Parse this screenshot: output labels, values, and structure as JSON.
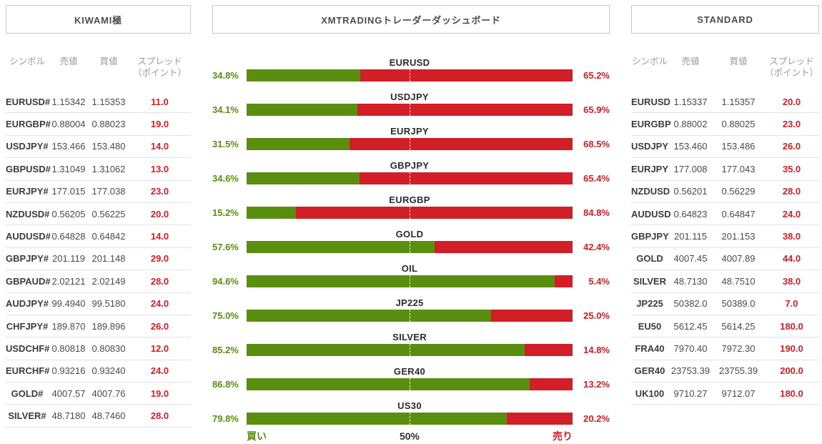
{
  "colors": {
    "buy_green": "#5a8e0e",
    "sell_red": "#d21e26",
    "header_gray": "#9b9b9b",
    "title_gray": "#4d4d4d"
  },
  "kiwami": {
    "title": "KIWAMI極",
    "columns": [
      "シンボル",
      "売値",
      "買値",
      "スプレッド（ポイント）"
    ],
    "rows": [
      {
        "symbol": "EURUSD#",
        "bid": "1.15342",
        "ask": "1.15353",
        "spread": "11.0"
      },
      {
        "symbol": "EURGBP#",
        "bid": "0.88004",
        "ask": "0.88023",
        "spread": "19.0"
      },
      {
        "symbol": "USDJPY#",
        "bid": "153.466",
        "ask": "153.480",
        "spread": "14.0"
      },
      {
        "symbol": "GBPUSD#",
        "bid": "1.31049",
        "ask": "1.31062",
        "spread": "13.0"
      },
      {
        "symbol": "EURJPY#",
        "bid": "177.015",
        "ask": "177.038",
        "spread": "23.0"
      },
      {
        "symbol": "NZDUSD#",
        "bid": "0.56205",
        "ask": "0.56225",
        "spread": "20.0"
      },
      {
        "symbol": "AUDUSD#",
        "bid": "0.64828",
        "ask": "0.64842",
        "spread": "14.0"
      },
      {
        "symbol": "GBPJPY#",
        "bid": "201.119",
        "ask": "201.148",
        "spread": "29.0"
      },
      {
        "symbol": "GBPAUD#",
        "bid": "2.02121",
        "ask": "2.02149",
        "spread": "28.0"
      },
      {
        "symbol": "AUDJPY#",
        "bid": "99.4940",
        "ask": "99.5180",
        "spread": "24.0"
      },
      {
        "symbol": "CHFJPY#",
        "bid": "189.870",
        "ask": "189.896",
        "spread": "26.0"
      },
      {
        "symbol": "USDCHF#",
        "bid": "0.80818",
        "ask": "0.80830",
        "spread": "12.0"
      },
      {
        "symbol": "EURCHF#",
        "bid": "0.93216",
        "ask": "0.93240",
        "spread": "24.0"
      },
      {
        "symbol": "GOLD#",
        "bid": "4007.57",
        "ask": "4007.76",
        "spread": "19.0"
      },
      {
        "symbol": "SILVER#",
        "bid": "48.7180",
        "ask": "48.7460",
        "spread": "28.0"
      }
    ]
  },
  "dashboard": {
    "title": "XMTRADINGトレーダーダッシュボード",
    "footer": {
      "buy_label": "買い",
      "mid_label": "50%",
      "sell_label": "売り"
    },
    "bars": [
      {
        "symbol": "EURUSD",
        "buy_pct": 34.8,
        "sell_pct": 65.2,
        "buy_label": "34.8%",
        "sell_label": "65.2%"
      },
      {
        "symbol": "USDJPY",
        "buy_pct": 34.1,
        "sell_pct": 65.9,
        "buy_label": "34.1%",
        "sell_label": "65.9%"
      },
      {
        "symbol": "EURJPY",
        "buy_pct": 31.5,
        "sell_pct": 68.5,
        "buy_label": "31.5%",
        "sell_label": "68.5%"
      },
      {
        "symbol": "GBPJPY",
        "buy_pct": 34.6,
        "sell_pct": 65.4,
        "buy_label": "34.6%",
        "sell_label": "65.4%"
      },
      {
        "symbol": "EURGBP",
        "buy_pct": 15.2,
        "sell_pct": 84.8,
        "buy_label": "15.2%",
        "sell_label": "84.8%"
      },
      {
        "symbol": "GOLD",
        "buy_pct": 57.6,
        "sell_pct": 42.4,
        "buy_label": "57.6%",
        "sell_label": "42.4%"
      },
      {
        "symbol": "OIL",
        "buy_pct": 94.6,
        "sell_pct": 5.4,
        "buy_label": "94.6%",
        "sell_label": "5.4%"
      },
      {
        "symbol": "JP225",
        "buy_pct": 75.0,
        "sell_pct": 25.0,
        "buy_label": "75.0%",
        "sell_label": "25.0%"
      },
      {
        "symbol": "SILVER",
        "buy_pct": 85.2,
        "sell_pct": 14.8,
        "buy_label": "85.2%",
        "sell_label": "14.8%"
      },
      {
        "symbol": "GER40",
        "buy_pct": 86.8,
        "sell_pct": 13.2,
        "buy_label": "86.8%",
        "sell_label": "13.2%"
      },
      {
        "symbol": "US30",
        "buy_pct": 79.8,
        "sell_pct": 20.2,
        "buy_label": "79.8%",
        "sell_label": "20.2%"
      }
    ]
  },
  "standard": {
    "title": "STANDARD",
    "columns": [
      "シンボル",
      "売値",
      "買値",
      "スプレッド（ポイント）"
    ],
    "rows": [
      {
        "symbol": "EURUSD",
        "bid": "1.15337",
        "ask": "1.15357",
        "spread": "20.0"
      },
      {
        "symbol": "EURGBP",
        "bid": "0.88002",
        "ask": "0.88025",
        "spread": "23.0"
      },
      {
        "symbol": "USDJPY",
        "bid": "153.460",
        "ask": "153.486",
        "spread": "26.0"
      },
      {
        "symbol": "EURJPY",
        "bid": "177.008",
        "ask": "177.043",
        "spread": "35.0"
      },
      {
        "symbol": "NZDUSD",
        "bid": "0.56201",
        "ask": "0.56229",
        "spread": "28.0"
      },
      {
        "symbol": "AUDUSD",
        "bid": "0.64823",
        "ask": "0.64847",
        "spread": "24.0"
      },
      {
        "symbol": "GBPJPY",
        "bid": "201.115",
        "ask": "201.153",
        "spread": "38.0"
      },
      {
        "symbol": "GOLD",
        "bid": "4007.45",
        "ask": "4007.89",
        "spread": "44.0"
      },
      {
        "symbol": "SILVER",
        "bid": "48.7130",
        "ask": "48.7510",
        "spread": "38.0"
      },
      {
        "symbol": "JP225",
        "bid": "50382.0",
        "ask": "50389.0",
        "spread": "7.0"
      },
      {
        "symbol": "EU50",
        "bid": "5612.45",
        "ask": "5614.25",
        "spread": "180.0"
      },
      {
        "symbol": "FRA40",
        "bid": "7970.40",
        "ask": "7972.30",
        "spread": "190.0"
      },
      {
        "symbol": "GER40",
        "bid": "23753.39",
        "ask": "23755.39",
        "spread": "200.0"
      },
      {
        "symbol": "UK100",
        "bid": "9710.27",
        "ask": "9712.07",
        "spread": "180.0"
      }
    ]
  },
  "chart_data": {
    "type": "bar",
    "orientation": "horizontal-stacked",
    "title": "XMTRADINGトレーダーダッシュボード",
    "categories": [
      "EURUSD",
      "USDJPY",
      "EURJPY",
      "GBPJPY",
      "EURGBP",
      "GOLD",
      "OIL",
      "JP225",
      "SILVER",
      "GER40",
      "US30"
    ],
    "series": [
      {
        "name": "買い",
        "color": "#5a8e0e",
        "values": [
          34.8,
          34.1,
          31.5,
          34.6,
          15.2,
          57.6,
          94.6,
          75.0,
          85.2,
          86.8,
          79.8
        ]
      },
      {
        "name": "売り",
        "color": "#d21e26",
        "values": [
          65.2,
          65.9,
          68.5,
          65.4,
          84.8,
          42.4,
          5.4,
          25.0,
          14.8,
          13.2,
          20.2
        ]
      }
    ],
    "xlim": [
      0,
      100
    ],
    "midline": 50,
    "axis_annotations": [
      "買い",
      "50%",
      "売り"
    ]
  }
}
